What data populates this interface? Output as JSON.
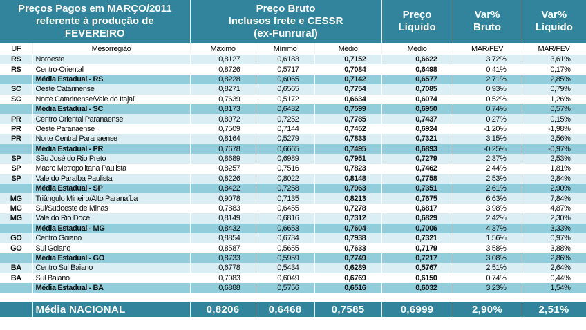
{
  "header": {
    "title_lines": [
      "Preços Pagos em MARÇO/2011",
      "referente à produção de",
      "FEVEREIRO"
    ],
    "bruto_lines": [
      "Preço Bruto",
      "Inclusos frete e CESSR",
      "(ex-Funrural)"
    ],
    "liquido_lines": [
      "Preço",
      "Líquido"
    ],
    "var_bruto_lines": [
      "Var%",
      "Bruto"
    ],
    "var_liquido_lines": [
      "Var%",
      "Líquido"
    ]
  },
  "columns": [
    "UF",
    "Mesorregião",
    "Máximo",
    "Mínimo",
    "Médio",
    "Médio",
    "MAR/FEV",
    "MAR/FEV"
  ],
  "rows": [
    {
      "type": "light",
      "uf": "RS",
      "meso": "Noroeste",
      "max": "0,8127",
      "min": "0,6183",
      "med": "0,7152",
      "liq": "0,6622",
      "vb": "3,72%",
      "vl": "3,61%"
    },
    {
      "type": "white",
      "uf": "RS",
      "meso": "Centro-Oriental",
      "max": "0,8726",
      "min": "0,5717",
      "med": "0,7084",
      "liq": "0,6498",
      "vb": "0,41%",
      "vl": "0,17%"
    },
    {
      "type": "avg",
      "uf": "",
      "meso": "Média Estadual - RS",
      "max": "0,8228",
      "min": "0,6065",
      "med": "0,7142",
      "liq": "0,6577",
      "vb": "2,71%",
      "vl": "2,85%"
    },
    {
      "type": "light",
      "uf": "SC",
      "meso": "Oeste Catarinense",
      "max": "0,8271",
      "min": "0,6565",
      "med": "0,7754",
      "liq": "0,7085",
      "vb": "0,93%",
      "vl": "0,79%"
    },
    {
      "type": "white",
      "uf": "SC",
      "meso": "Norte Catarinense/Vale do Itajaí",
      "max": "0,7639",
      "min": "0,5172",
      "med": "0,6634",
      "liq": "0,6074",
      "vb": "0,52%",
      "vl": "1,26%"
    },
    {
      "type": "avg",
      "uf": "",
      "meso": "Média Estadual - SC",
      "max": "0,8173",
      "min": "0,6432",
      "med": "0,7599",
      "liq": "0,6950",
      "vb": "0,74%",
      "vl": "0,57%"
    },
    {
      "type": "light",
      "uf": "PR",
      "meso": "Centro Oriental Paranaense",
      "max": "0,8072",
      "min": "0,7252",
      "med": "0,7785",
      "liq": "0,7437",
      "vb": "0,27%",
      "vl": "0,15%"
    },
    {
      "type": "white",
      "uf": "PR",
      "meso": "Oeste Paranaense",
      "max": "0,7509",
      "min": "0,7144",
      "med": "0,7452",
      "liq": "0,6924",
      "vb": "-1,20%",
      "vl": "-1,98%"
    },
    {
      "type": "light",
      "uf": "PR",
      "meso": "Norte Central Paranaense",
      "max": "0,8164",
      "min": "0,5279",
      "med": "0,7833",
      "liq": "0,7321",
      "vb": "3,15%",
      "vl": "2,56%"
    },
    {
      "type": "avg",
      "uf": "",
      "meso": "Média Estadual - PR",
      "max": "0,7678",
      "min": "0,6665",
      "med": "0,7495",
      "liq": "0,6893",
      "vb": "-0,25%",
      "vl": "-0,97%"
    },
    {
      "type": "light",
      "uf": "SP",
      "meso": "São José do Rio Preto",
      "max": "0,8689",
      "min": "0,6989",
      "med": "0,7951",
      "liq": "0,7279",
      "vb": "2,37%",
      "vl": "2,53%"
    },
    {
      "type": "white",
      "uf": "SP",
      "meso": "Macro Metropolitana Paulista",
      "max": "0,8257",
      "min": "0,7516",
      "med": "0,7823",
      "liq": "0,7462",
      "vb": "2,44%",
      "vl": "1,81%"
    },
    {
      "type": "light",
      "uf": "SP",
      "meso": "Vale do Paraíba Paulista",
      "max": "0,8226",
      "min": "0,8022",
      "med": "0,8148",
      "liq": "0,7758",
      "vb": "2,53%",
      "vl": "2,84%"
    },
    {
      "type": "avg",
      "uf": "",
      "meso": "Média Estadual - SP",
      "max": "0,8422",
      "min": "0,7258",
      "med": "0,7963",
      "liq": "0,7351",
      "vb": "2,61%",
      "vl": "2,90%"
    },
    {
      "type": "light",
      "uf": "MG",
      "meso": "Triângulo Mineiro/Alto Paranaíba",
      "max": "0,9078",
      "min": "0,7135",
      "med": "0,8213",
      "liq": "0,7675",
      "vb": "6,63%",
      "vl": "7,84%"
    },
    {
      "type": "white",
      "uf": "MG",
      "meso": "Sul/Sudoeste de Minas",
      "max": "0,7883",
      "min": "0,6455",
      "med": "0,7278",
      "liq": "0,6817",
      "vb": "3,98%",
      "vl": "4,87%"
    },
    {
      "type": "light",
      "uf": "MG",
      "meso": "Vale do Rio Doce",
      "max": "0,8149",
      "min": "0,6816",
      "med": "0,7312",
      "liq": "0,6829",
      "vb": "2,42%",
      "vl": "2,30%"
    },
    {
      "type": "avg",
      "uf": "",
      "meso": "Média Estadual - MG",
      "max": "0,8432",
      "min": "0,6653",
      "med": "0,7604",
      "liq": "0,7006",
      "vb": "4,37%",
      "vl": "3,33%"
    },
    {
      "type": "light",
      "uf": "GO",
      "meso": "Centro Goiano",
      "max": "0,8854",
      "min": "0,6734",
      "med": "0,7938",
      "liq": "0,7321",
      "vb": "1,56%",
      "vl": "0,97%"
    },
    {
      "type": "white",
      "uf": "GO",
      "meso": "Sul Goiano",
      "max": "0,8587",
      "min": "0,5655",
      "med": "0,7633",
      "liq": "0,7179",
      "vb": "3,58%",
      "vl": "3,88%"
    },
    {
      "type": "avg",
      "uf": "",
      "meso": "Média Estadual - GO",
      "max": "0,8733",
      "min": "0,5959",
      "med": "0,7749",
      "liq": "0,7217",
      "vb": "3,08%",
      "vl": "2,86%"
    },
    {
      "type": "light",
      "uf": "BA",
      "meso": "Centro Sul Baiano",
      "max": "0,6778",
      "min": "0,5434",
      "med": "0,6289",
      "liq": "0,5767",
      "vb": "2,51%",
      "vl": "2,64%"
    },
    {
      "type": "white",
      "uf": "BA",
      "meso": "Sul Baiano",
      "max": "0,7083",
      "min": "0,6049",
      "med": "0,6769",
      "liq": "0,6150",
      "vb": "0,74%",
      "vl": "0,44%"
    },
    {
      "type": "avg",
      "uf": "",
      "meso": "Média Estadual - BA",
      "max": "0,6888",
      "min": "0,5756",
      "med": "0,6516",
      "liq": "0,6032",
      "vb": "3,23%",
      "vl": "1,54%"
    }
  ],
  "national": {
    "label": "Média NACIONAL",
    "max": "0,8206",
    "min": "0,6468",
    "med": "0,7585",
    "liq": "0,6999",
    "vb": "2,90%",
    "vl": "2,51%"
  },
  "colors": {
    "header": "#31849B",
    "avg_row": "#92CDDC",
    "light_row": "#DAEEF3"
  }
}
